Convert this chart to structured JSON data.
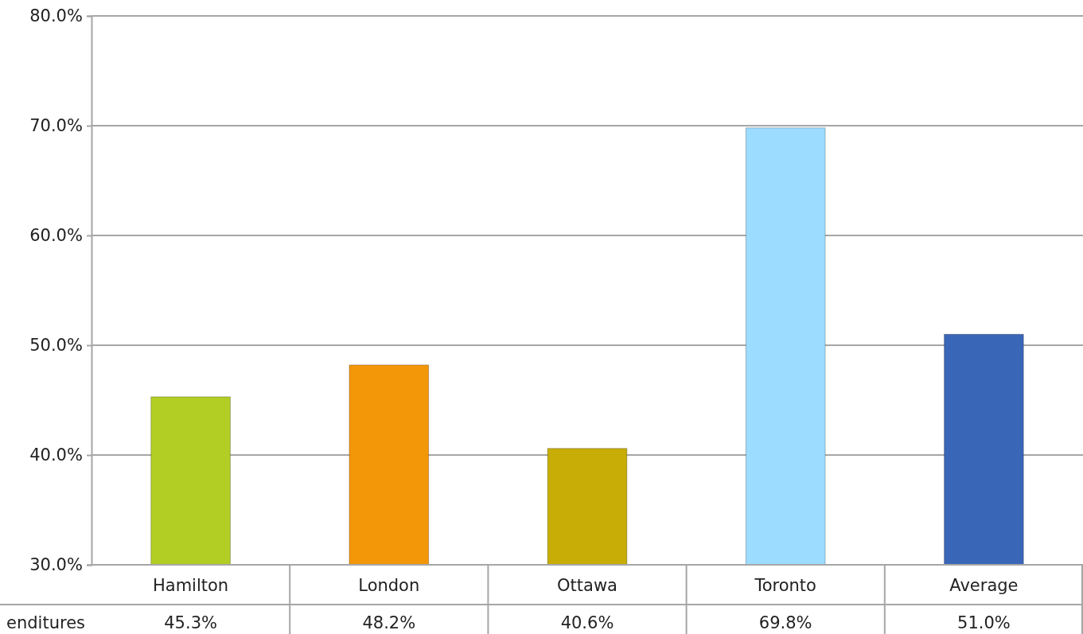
{
  "chart_data": {
    "type": "bar",
    "categories": [
      "Hamilton",
      "London",
      "Ottawa",
      "Toronto",
      "Average"
    ],
    "series": [
      {
        "name": "enditures",
        "values": [
          45.3,
          48.2,
          40.6,
          69.8,
          51.0
        ],
        "value_labels": [
          "45.3%",
          "48.2%",
          "40.6%",
          "69.8%",
          "51.0%"
        ],
        "colors": [
          "#b2cd23",
          "#f39608",
          "#c7ad06",
          "#9cdcff",
          "#3a66b8"
        ]
      }
    ],
    "ylim": [
      30,
      80
    ],
    "yticks": [
      {
        "value": 30,
        "label": "30.0%"
      },
      {
        "value": 40,
        "label": "40.0%"
      },
      {
        "value": 50,
        "label": "50.0%"
      },
      {
        "value": 60,
        "label": "60.0%"
      },
      {
        "value": 70,
        "label": "70.0%"
      },
      {
        "value": 80,
        "label": "80.0%"
      }
    ],
    "grid": "y"
  }
}
